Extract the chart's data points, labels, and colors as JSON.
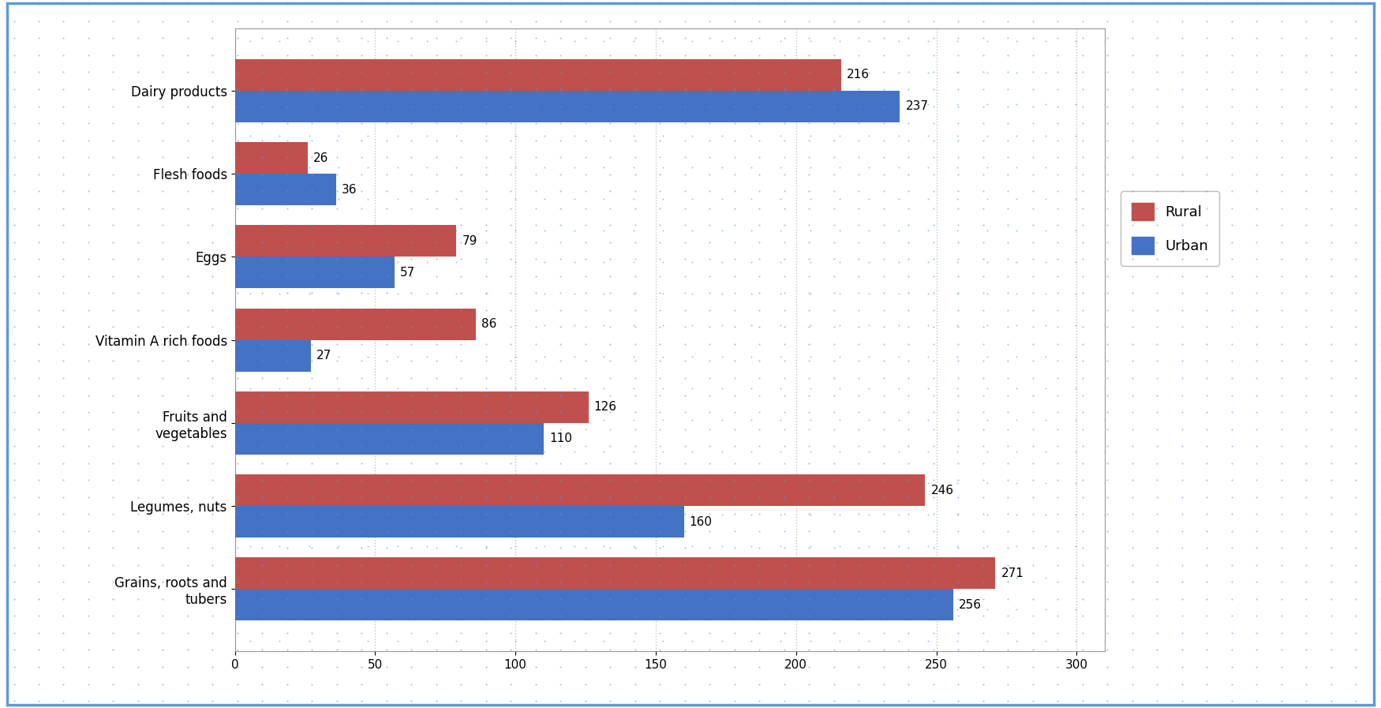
{
  "categories": [
    "Grains, roots and\ntubers",
    "Legumes, nuts",
    "Fruits and\nvegetables",
    "Vitamin A rich foods",
    "Eggs",
    "Flesh foods",
    "Dairy products"
  ],
  "rural_values": [
    271,
    246,
    126,
    86,
    79,
    26,
    216
  ],
  "urban_values": [
    256,
    160,
    110,
    27,
    57,
    36,
    237
  ],
  "rural_color": "#C0504D",
  "urban_color": "#4472C4",
  "bar_height": 0.38,
  "xlim": [
    0,
    310
  ],
  "xticks": [
    0,
    50,
    100,
    150,
    200,
    250,
    300
  ],
  "legend_labels": [
    "Rural",
    "Urban"
  ],
  "background_color": "#FFFFFF",
  "dot_color": "#5B9BD5",
  "border_color": "#5B9BD5",
  "grid_color": "#C0C0C0",
  "label_fontsize": 12,
  "tick_fontsize": 11,
  "value_fontsize": 11
}
